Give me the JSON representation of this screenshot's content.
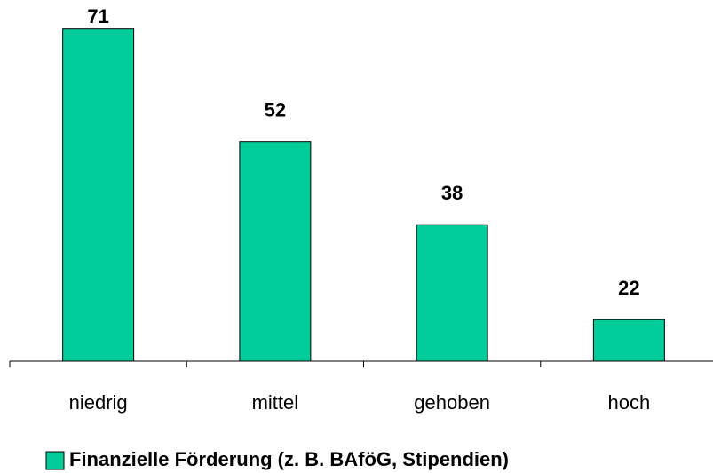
{
  "chart_data": {
    "type": "bar",
    "categories": [
      "niedrig",
      "mittel",
      "gehoben",
      "hoch"
    ],
    "values": [
      71,
      52,
      38,
      22
    ],
    "color": "#00cc99",
    "ylim": [
      15,
      72
    ],
    "legend": "bottom",
    "series_name": "Finanzielle Förderung (z. B. BAföG, Stipendien)"
  }
}
